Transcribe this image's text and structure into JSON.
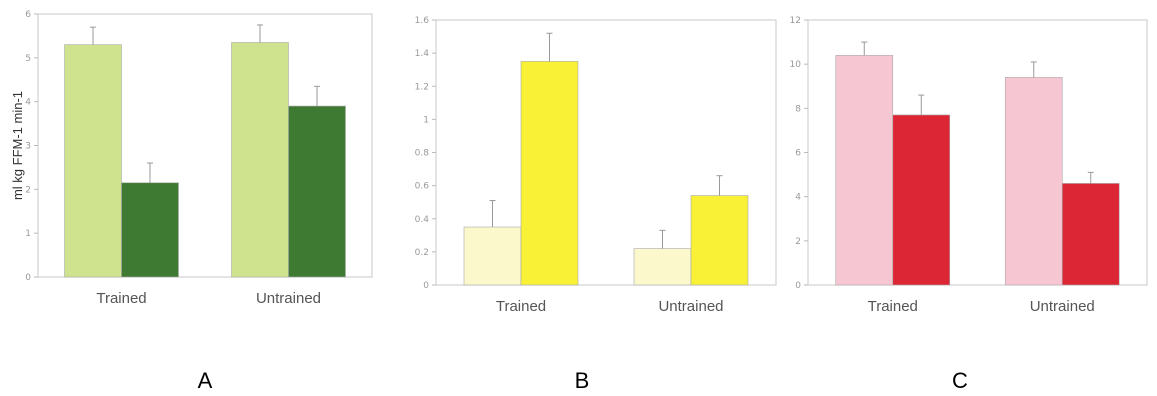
{
  "chart_data": [
    {
      "type": "bar",
      "panel_label": "A",
      "ylabel": "ml kg FFM-1 min-1",
      "categories": [
        "Trained",
        "Untrained"
      ],
      "ylim": [
        0,
        6
      ],
      "yticks": [
        "0",
        "1",
        "2",
        "3",
        "4",
        "5",
        "6"
      ],
      "series": [
        {
          "values": [
            5.3,
            5.35
          ],
          "errors": [
            0.4,
            0.4
          ],
          "color": "#cfe38f"
        },
        {
          "values": [
            2.15,
            3.9
          ],
          "errors": [
            0.45,
            0.45
          ],
          "color": "#3f7a32"
        }
      ]
    },
    {
      "type": "bar",
      "panel_label": "B",
      "ylabel": "",
      "categories": [
        "Trained",
        "Untrained"
      ],
      "ylim": [
        0,
        1.6
      ],
      "yticks": [
        "0",
        "0.2",
        "0.4",
        "0.6",
        "0.8",
        "1",
        "1.2",
        "1.4",
        "1.6"
      ],
      "series": [
        {
          "values": [
            0.35,
            0.22
          ],
          "errors": [
            0.16,
            0.11
          ],
          "color": "#fbf8cc"
        },
        {
          "values": [
            1.35,
            0.54
          ],
          "errors": [
            0.17,
            0.12
          ],
          "color": "#f8f135"
        }
      ]
    },
    {
      "type": "bar",
      "panel_label": "C",
      "ylabel": "",
      "categories": [
        "Trained",
        "Untrained"
      ],
      "ylim": [
        0,
        12
      ],
      "yticks": [
        "0",
        "2",
        "4",
        "6",
        "8",
        "10",
        "12"
      ],
      "series": [
        {
          "values": [
            10.4,
            9.4
          ],
          "errors": [
            0.6,
            0.7
          ],
          "color": "#f7c6d3"
        },
        {
          "values": [
            7.7,
            4.6
          ],
          "errors": [
            0.9,
            0.5
          ],
          "color": "#dc2635"
        }
      ]
    }
  ]
}
